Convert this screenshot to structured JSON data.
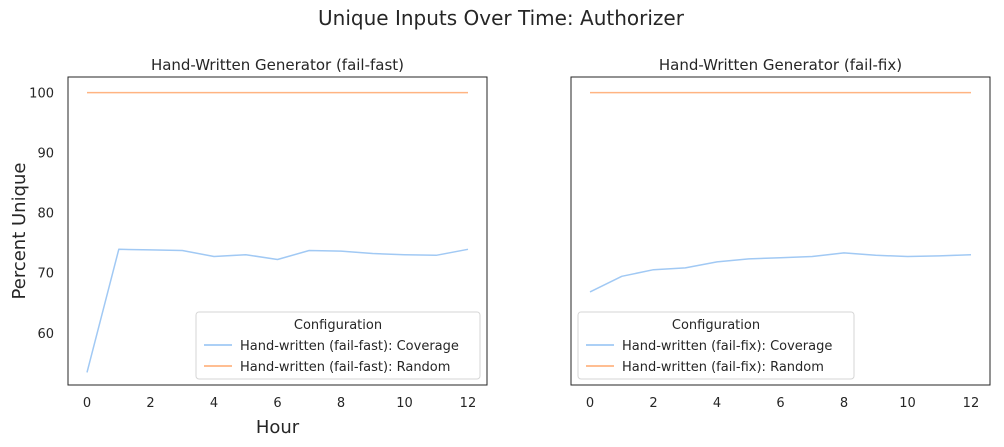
{
  "figure": {
    "suptitle": "Unique Inputs Over Time: Authorizer",
    "shared_ylabel": "Percent Unique",
    "colors": {
      "coverage": "#a1c9f4",
      "random": "#ffb482"
    }
  },
  "chart_data": [
    {
      "type": "line",
      "title": "Hand-Written Generator (fail-fast)",
      "xlabel": "Hour",
      "ylabel": "Percent Unique",
      "xlim": [
        -0.6,
        12.6
      ],
      "ylim": [
        51.3,
        102.6
      ],
      "xticks": [
        0,
        2,
        4,
        6,
        8,
        10,
        12
      ],
      "yticks": [
        60,
        70,
        80,
        90,
        100
      ],
      "grid": false,
      "legend": {
        "title": "Configuration",
        "placement": "lower-right"
      },
      "series": [
        {
          "name": "Hand-written (fail-fast): Coverage",
          "color": "#a1c9f4",
          "x": [
            0,
            1,
            2,
            3,
            4,
            5,
            6,
            7,
            8,
            9,
            10,
            11,
            12
          ],
          "y": [
            53.4,
            73.9,
            73.8,
            73.7,
            72.7,
            73.0,
            72.2,
            73.7,
            73.6,
            73.2,
            73.0,
            72.9,
            73.9
          ]
        },
        {
          "name": "Hand-written (fail-fast): Random",
          "color": "#ffb482",
          "x": [
            0,
            1,
            2,
            3,
            4,
            5,
            6,
            7,
            8,
            9,
            10,
            11,
            12
          ],
          "y": [
            100,
            100,
            100,
            100,
            100,
            100,
            100,
            100,
            100,
            100,
            100,
            100,
            100
          ]
        }
      ]
    },
    {
      "type": "line",
      "title": "Hand-Written Generator (fail-fix)",
      "xlabel": "",
      "ylabel": "",
      "xlim": [
        -0.6,
        12.6
      ],
      "ylim": [
        51.3,
        102.6
      ],
      "xticks": [
        0,
        2,
        4,
        6,
        8,
        10,
        12
      ],
      "yticks": [],
      "grid": false,
      "legend": {
        "title": "Configuration",
        "placement": "lower-left"
      },
      "series": [
        {
          "name": "Hand-written (fail-fix): Coverage",
          "color": "#a1c9f4",
          "x": [
            0,
            1,
            2,
            3,
            4,
            5,
            6,
            7,
            8,
            9,
            10,
            11,
            12
          ],
          "y": [
            66.8,
            69.4,
            70.5,
            70.8,
            71.8,
            72.3,
            72.5,
            72.7,
            73.3,
            72.9,
            72.7,
            72.8,
            73.0
          ]
        },
        {
          "name": "Hand-written (fail-fix): Random",
          "color": "#ffb482",
          "x": [
            0,
            1,
            2,
            3,
            4,
            5,
            6,
            7,
            8,
            9,
            10,
            11,
            12
          ],
          "y": [
            100,
            100,
            100,
            100,
            100,
            100,
            100,
            100,
            100,
            100,
            100,
            100,
            100
          ]
        }
      ]
    }
  ]
}
